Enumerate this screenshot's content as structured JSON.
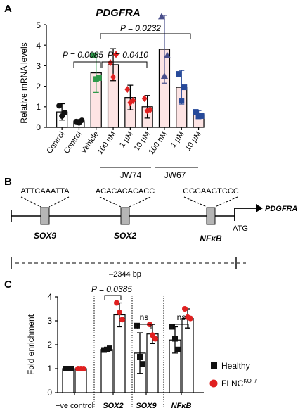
{
  "panel_a": {
    "letter": "A",
    "title": "PDGFRA",
    "ylabel": "Relative mRNA levels",
    "yticks": [
      "0",
      "1",
      "2",
      "3",
      "4",
      "5"
    ],
    "group_labels": [
      "JW74",
      "JW67"
    ],
    "pvalues": [
      "P = 0.0085",
      "P = 0.0410",
      "P = 0.0232"
    ]
  },
  "panel_b": {
    "letter": "B",
    "gene_label": "PDGFRA",
    "atg_label": "ATG",
    "distance_label": "–2344 bp",
    "sites": [
      {
        "sequence": "ATTCAAATTA",
        "factor": "SOX9"
      },
      {
        "sequence": "ACACACACACC",
        "factor": "SOX2"
      },
      {
        "sequence": "GGGAAGTCCC",
        "factor": "NFκB"
      }
    ]
  },
  "panel_c": {
    "letter": "C",
    "ylabel": "Fold enrichment",
    "yticks": [
      "0",
      "1",
      "2",
      "3",
      "4"
    ],
    "pvalue": "P = 0.0385",
    "ns_labels": [
      "ns",
      "ns"
    ],
    "legend": [
      {
        "label": "Healthy",
        "marker": "square",
        "color": "#111111"
      },
      {
        "label": "FLNC",
        "superscript": "KO−/−",
        "marker": "circle",
        "color": "#e02020"
      }
    ]
  },
  "chart_data": [
    {
      "type": "bar",
      "title": "PDGFRA",
      "xlabel": "",
      "ylabel": "Relative mRNA levels",
      "ylim": [
        0,
        5.5
      ],
      "categories": [
        "Control",
        "Control",
        "Vehicle",
        "100 nM",
        "1 μM",
        "10 μM",
        "100 nM",
        "1 μM",
        "10 μM"
      ],
      "groups": [
        {
          "label": "JW74",
          "categories": [
            "100 nM",
            "1 μM",
            "10 μM"
          ]
        },
        {
          "label": "JW67",
          "categories": [
            "100 nM",
            "1 μM",
            "10 μM"
          ]
        }
      ],
      "values": [
        0.75,
        0.28,
        2.65,
        3.05,
        1.45,
        1.0,
        3.8,
        1.95,
        0.62
      ],
      "errors": [
        0.4,
        0.1,
        0.95,
        0.78,
        0.6,
        0.55,
        1.65,
        0.82,
        0.2
      ],
      "points": [
        [
          1.05,
          0.55,
          0.72
        ],
        [
          0.28,
          0.22,
          0.34
        ],
        [
          3.5,
          2.35,
          2.4
        ],
        [
          3.15,
          2.45,
          3.55
        ],
        [
          1.85,
          1.2,
          1.3
        ],
        [
          1.4,
          0.8,
          0.85
        ],
        [
          5.4,
          2.5,
          3.5
        ],
        [
          2.6,
          1.3,
          1.95
        ],
        [
          0.75,
          0.55,
          0.55
        ]
      ],
      "point_colors": [
        "#111111",
        "#111111",
        "#2e9a4a",
        "#e02020",
        "#e02020",
        "#e02020",
        "#4a4f8c",
        "#274a9a",
        "#274a9a"
      ],
      "point_markers": [
        "circle",
        "circle",
        "square",
        "diamond",
        "diamond",
        "diamond",
        "triangle",
        "square",
        "square"
      ],
      "bar_fill": [
        "#ffffff",
        "#ffffff",
        "#fde4e4",
        "#fde4e4",
        "#fde4e4",
        "#fde4e4",
        "#fde4e4",
        "#fde4e4",
        "#fde4e4"
      ],
      "comparisons": [
        {
          "from": "Control",
          "to": "Vehicle",
          "p": "P = 0.0085"
        },
        {
          "from": "Vehicle",
          "to": "JW74 10 μM",
          "p": "P = 0.0410"
        },
        {
          "from": "Vehicle",
          "to": "JW67 10 μM",
          "p": "P = 0.0232"
        }
      ]
    },
    {
      "type": "bar",
      "title": "",
      "xlabel": "",
      "ylabel": "Fold enrichment",
      "ylim": [
        0,
        4
      ],
      "categories": [
        "−ve control",
        "SOX2",
        "SOX9",
        "NFκB"
      ],
      "series": [
        {
          "name": "Healthy",
          "values": [
            1.0,
            1.8,
            1.65,
            2.2
          ],
          "errors": [
            0.0,
            0.05,
            0.85,
            0.55
          ],
          "points": [
            [
              1.0,
              1.0,
              1.0
            ],
            [
              1.78,
              1.8,
              1.85
            ],
            [
              2.8,
              1.5,
              1.2
            ],
            [
              2.75,
              2.25,
              1.8
            ]
          ]
        },
        {
          "name": "FLNC KO−/−",
          "values": [
            1.0,
            3.25,
            2.45,
            3.1
          ],
          "errors": [
            0.0,
            0.5,
            0.4,
            0.4
          ],
          "points": [
            [
              1.0,
              1.0,
              1.0
            ],
            [
              3.75,
              3.35,
              3.05
            ],
            [
              2.85,
              2.4,
              2.25
            ],
            [
              3.5,
              3.15,
              3.1
            ]
          ]
        }
      ],
      "comparisons": [
        {
          "category": "SOX2",
          "p": "P = 0.0385"
        },
        {
          "category": "SOX9",
          "p": "ns"
        },
        {
          "category": "NFκB",
          "p": "ns"
        }
      ]
    }
  ]
}
